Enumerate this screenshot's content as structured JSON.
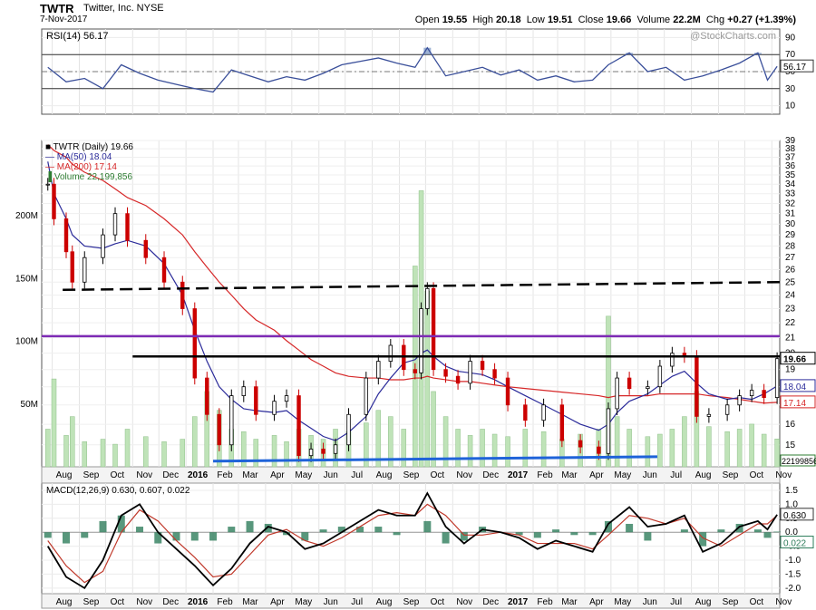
{
  "header": {
    "symbol": "TWTR",
    "company": "Twitter, Inc.  NYSE",
    "date": "7-Nov-2017",
    "quote": {
      "open_label": "Open",
      "open": "19.55",
      "high_label": "High",
      "high": "20.18",
      "low_label": "Low",
      "low": "19.51",
      "close_label": "Close",
      "close": "19.66",
      "volume_label": "Volume",
      "volume": "22.2M",
      "chg_label": "Chg",
      "chg": "+0.27 (+1.39%)"
    },
    "watermark": "@StockCharts.com"
  },
  "colors": {
    "price_up": "#000000",
    "price_down": "#cc0000",
    "ma50": "#2b2b9a",
    "ma200": "#d62728",
    "volume": "#bfe3b8",
    "rsi": "#3a4f9a",
    "macd": "#000000",
    "signal": "#c0392b",
    "histogram": "#2e7d5b",
    "resistance_purple": "#7e2bb5",
    "support_blue": "#1f63d9",
    "level_black": "#000000"
  },
  "chart_data": [
    {
      "type": "line",
      "panel": "rsi",
      "legend": "RSI(14) 56.17",
      "ylim": [
        0,
        100
      ],
      "yticks": [
        "90",
        "70",
        "50",
        "30",
        "10"
      ],
      "current_value_label": "56.17",
      "reference_lines": [
        70,
        30
      ],
      "x": [
        "2015-07-27",
        "2015-08-17",
        "2015-09-07",
        "2015-09-28",
        "2015-10-19",
        "2015-11-09",
        "2015-11-30",
        "2015-12-21",
        "2016-01-11",
        "2016-02-01",
        "2016-02-22",
        "2016-03-14",
        "2016-04-04",
        "2016-04-25",
        "2016-05-16",
        "2016-06-06",
        "2016-06-27",
        "2016-07-18",
        "2016-08-08",
        "2016-08-29",
        "2016-09-19",
        "2016-10-03",
        "2016-10-24",
        "2016-11-14",
        "2016-12-05",
        "2016-12-26",
        "2017-01-16",
        "2017-02-06",
        "2017-02-27",
        "2017-03-20",
        "2017-04-10",
        "2017-04-28",
        "2017-05-22",
        "2017-06-12",
        "2017-07-03",
        "2017-07-24",
        "2017-08-14",
        "2017-09-04",
        "2017-09-25",
        "2017-10-16",
        "2017-10-27",
        "2017-11-07"
      ],
      "values": [
        55,
        38,
        42,
        30,
        58,
        48,
        40,
        35,
        30,
        26,
        52,
        45,
        38,
        44,
        40,
        48,
        58,
        62,
        66,
        60,
        55,
        78,
        45,
        50,
        55,
        46,
        52,
        40,
        45,
        38,
        40,
        58,
        72,
        50,
        55,
        40,
        45,
        52,
        60,
        72,
        40,
        56.17
      ]
    },
    {
      "type": "candlestick",
      "panel": "price",
      "legend": [
        "TWTR (Daily) 19.66",
        "MA(50) 18.04",
        "MA(200) 17.14",
        "Volume 22,199,856"
      ],
      "y_scale": "log",
      "ylim": [
        14,
        39
      ],
      "yticks": [
        "39",
        "38",
        "37",
        "36",
        "35",
        "34",
        "33",
        "32",
        "31",
        "30",
        "29",
        "28",
        "27",
        "26",
        "25",
        "24",
        "23",
        "22",
        "21",
        "20",
        "19",
        "18",
        "17",
        "16",
        "15"
      ],
      "current_labels": {
        "close": "19.66",
        "ma50": "18.04",
        "ma200": "17.14",
        "volume": "22199856"
      },
      "x": [
        "2015-07-27",
        "2015-08-03",
        "2015-08-17",
        "2015-08-24",
        "2015-09-07",
        "2015-09-28",
        "2015-10-12",
        "2015-10-26",
        "2015-11-16",
        "2015-12-07",
        "2015-12-28",
        "2016-01-11",
        "2016-01-25",
        "2016-02-08",
        "2016-02-22",
        "2016-03-07",
        "2016-03-21",
        "2016-04-11",
        "2016-04-25",
        "2016-05-09",
        "2016-05-23",
        "2016-06-06",
        "2016-06-20",
        "2016-07-05",
        "2016-07-25",
        "2016-08-08",
        "2016-08-22",
        "2016-09-06",
        "2016-09-19",
        "2016-09-26",
        "2016-10-03",
        "2016-10-10",
        "2016-10-24",
        "2016-11-07",
        "2016-11-21",
        "2016-12-05",
        "2016-12-19",
        "2017-01-03",
        "2017-01-23",
        "2017-02-13",
        "2017-03-06",
        "2017-03-27",
        "2017-04-17",
        "2017-04-28",
        "2017-05-08",
        "2017-05-22",
        "2017-06-12",
        "2017-06-26",
        "2017-07-10",
        "2017-07-24",
        "2017-08-07",
        "2017-08-21",
        "2017-09-11",
        "2017-09-25",
        "2017-10-09",
        "2017-10-23",
        "2017-11-07"
      ],
      "close": [
        34.0,
        30.5,
        27.5,
        25.0,
        27.0,
        29.0,
        31.0,
        28.5,
        27.0,
        25.0,
        23.0,
        18.5,
        16.5,
        15.0,
        17.5,
        18.0,
        16.5,
        17.2,
        17.5,
        14.5,
        14.8,
        14.6,
        15.0,
        16.5,
        18.5,
        19.5,
        20.5,
        19.0,
        18.8,
        23.0,
        24.5,
        19.0,
        18.6,
        18.2,
        19.5,
        19.0,
        18.5,
        17.0,
        16.2,
        17.0,
        15.2,
        14.9,
        14.6,
        16.8,
        18.5,
        17.9,
        18.0,
        19.2,
        20.0,
        19.8,
        16.4,
        16.5,
        17.0,
        17.5,
        17.8,
        17.4,
        19.66
      ],
      "ma50": [
        36.5,
        33.0,
        30.5,
        29.0,
        28.0,
        27.8,
        28.2,
        28.5,
        28.0,
        26.5,
        24.0,
        21.5,
        19.5,
        18.0,
        17.3,
        16.8,
        16.7,
        16.6,
        16.7,
        16.2,
        15.8,
        15.4,
        15.2,
        15.6,
        16.4,
        17.6,
        18.5,
        19.4,
        19.6,
        20.0,
        20.2,
        19.8,
        19.2,
        18.9,
        18.8,
        18.7,
        18.4,
        18.0,
        17.5,
        17.0,
        16.5,
        16.0,
        15.7,
        16.0,
        16.6,
        17.2,
        17.6,
        18.1,
        18.6,
        18.9,
        18.2,
        17.6,
        17.3,
        17.4,
        17.3,
        17.6,
        18.04
      ],
      "ma200": [
        38.5,
        37.8,
        37.0,
        36.2,
        35.3,
        34.4,
        33.5,
        32.6,
        31.8,
        30.5,
        29.0,
        27.5,
        26.2,
        25.0,
        24.0,
        23.0,
        22.2,
        21.5,
        20.8,
        20.2,
        19.6,
        19.2,
        18.8,
        18.6,
        18.5,
        18.5,
        18.4,
        18.4,
        18.5,
        18.5,
        18.6,
        18.5,
        18.4,
        18.3,
        18.3,
        18.2,
        18.1,
        18.0,
        17.9,
        17.8,
        17.7,
        17.6,
        17.5,
        17.4,
        17.5,
        17.5,
        17.5,
        17.6,
        17.6,
        17.6,
        17.6,
        17.5,
        17.4,
        17.3,
        17.2,
        17.1,
        17.14
      ],
      "volume_m": [
        30,
        70,
        25,
        40,
        20,
        22,
        18,
        30,
        24,
        20,
        22,
        40,
        60,
        45,
        30,
        28,
        22,
        25,
        20,
        30,
        25,
        22,
        30,
        28,
        35,
        45,
        40,
        30,
        160,
        220,
        140,
        60,
        40,
        30,
        25,
        30,
        26,
        24,
        30,
        28,
        22,
        26,
        30,
        120,
        40,
        30,
        24,
        26,
        30,
        40,
        60,
        32,
        28,
        30,
        34,
        26,
        22.2
      ],
      "volume_ticks": [
        "200M",
        "150M",
        "100M",
        "50M"
      ]
    },
    {
      "type": "line",
      "panel": "macd",
      "legend": "MACD(12,26,9) 0.630, 0.607, 0.022",
      "ylim": [
        -2.2,
        1.5
      ],
      "yticks": [
        "1.5",
        "1.0",
        "0.5",
        "0.0",
        "-0.5",
        "-1.0",
        "-1.5",
        "-2.0"
      ],
      "current_labels": {
        "macd": "0.630",
        "histogram": "0.022"
      },
      "x": [
        "2015-07-27",
        "2015-08-17",
        "2015-09-07",
        "2015-09-28",
        "2015-10-19",
        "2015-11-09",
        "2015-11-30",
        "2015-12-21",
        "2016-01-11",
        "2016-02-01",
        "2016-02-22",
        "2016-03-14",
        "2016-04-04",
        "2016-04-25",
        "2016-05-16",
        "2016-06-06",
        "2016-06-27",
        "2016-07-18",
        "2016-08-08",
        "2016-08-29",
        "2016-09-19",
        "2016-10-03",
        "2016-10-24",
        "2016-11-14",
        "2016-12-05",
        "2016-12-26",
        "2017-01-16",
        "2017-02-06",
        "2017-02-27",
        "2017-03-20",
        "2017-04-10",
        "2017-04-28",
        "2017-05-22",
        "2017-06-12",
        "2017-07-03",
        "2017-07-24",
        "2017-08-14",
        "2017-09-04",
        "2017-09-25",
        "2017-10-16",
        "2017-10-27",
        "2017-11-07"
      ],
      "series": [
        {
          "name": "MACD",
          "values": [
            -0.5,
            -1.6,
            -2.0,
            -1.0,
            0.6,
            1.0,
            0.0,
            -0.6,
            -1.2,
            -1.9,
            -1.3,
            -0.4,
            0.2,
            0.0,
            -0.6,
            -0.4,
            0.0,
            0.4,
            0.8,
            0.6,
            0.6,
            1.4,
            0.2,
            -0.4,
            0.1,
            0.0,
            -0.2,
            -0.6,
            -0.3,
            -0.5,
            -0.7,
            0.3,
            0.9,
            0.2,
            0.3,
            0.6,
            -0.7,
            -0.4,
            0.2,
            0.4,
            0.1,
            0.63
          ]
        },
        {
          "name": "Signal",
          "values": [
            -0.3,
            -1.2,
            -1.8,
            -1.4,
            0.0,
            0.8,
            0.4,
            -0.3,
            -0.9,
            -1.6,
            -1.5,
            -0.8,
            -0.1,
            0.1,
            -0.3,
            -0.5,
            -0.2,
            0.2,
            0.6,
            0.7,
            0.6,
            1.0,
            0.6,
            -0.1,
            -0.1,
            0.0,
            -0.1,
            -0.4,
            -0.4,
            -0.4,
            -0.6,
            -0.1,
            0.6,
            0.5,
            0.3,
            0.5,
            -0.2,
            -0.5,
            -0.1,
            0.3,
            0.3,
            0.607
          ]
        },
        {
          "name": "Histogram",
          "values": [
            -0.2,
            -0.4,
            -0.2,
            0.4,
            0.6,
            0.2,
            -0.4,
            -0.3,
            -0.3,
            -0.3,
            0.2,
            0.4,
            0.3,
            -0.1,
            -0.3,
            0.1,
            0.2,
            0.2,
            0.2,
            -0.1,
            0.0,
            0.4,
            -0.4,
            -0.3,
            0.2,
            0.0,
            -0.1,
            -0.2,
            0.1,
            -0.1,
            -0.1,
            0.4,
            0.3,
            -0.3,
            0.0,
            0.1,
            -0.5,
            0.1,
            0.3,
            0.1,
            -0.2,
            0.022
          ]
        }
      ]
    }
  ],
  "x_axis": {
    "ticks": [
      {
        "label": "Aug",
        "date": "2015-08-01",
        "bold": false
      },
      {
        "label": "Sep",
        "date": "2015-09-01",
        "bold": false
      },
      {
        "label": "Oct",
        "date": "2015-10-01",
        "bold": false
      },
      {
        "label": "Nov",
        "date": "2015-11-01",
        "bold": false
      },
      {
        "label": "Dec",
        "date": "2015-12-01",
        "bold": false
      },
      {
        "label": "2016",
        "date": "2016-01-01",
        "bold": true
      },
      {
        "label": "Feb",
        "date": "2016-02-01",
        "bold": false
      },
      {
        "label": "Mar",
        "date": "2016-03-01",
        "bold": false
      },
      {
        "label": "Apr",
        "date": "2016-04-01",
        "bold": false
      },
      {
        "label": "May",
        "date": "2016-05-01",
        "bold": false
      },
      {
        "label": "Jun",
        "date": "2016-06-01",
        "bold": false
      },
      {
        "label": "Jul",
        "date": "2016-07-01",
        "bold": false
      },
      {
        "label": "Aug",
        "date": "2016-08-01",
        "bold": false
      },
      {
        "label": "Sep",
        "date": "2016-09-01",
        "bold": false
      },
      {
        "label": "Oct",
        "date": "2016-10-01",
        "bold": false
      },
      {
        "label": "Nov",
        "date": "2016-11-01",
        "bold": false
      },
      {
        "label": "Dec",
        "date": "2016-12-01",
        "bold": false
      },
      {
        "label": "2017",
        "date": "2017-01-01",
        "bold": true
      },
      {
        "label": "Feb",
        "date": "2017-02-01",
        "bold": false
      },
      {
        "label": "Mar",
        "date": "2017-03-01",
        "bold": false
      },
      {
        "label": "Apr",
        "date": "2017-04-01",
        "bold": false
      },
      {
        "label": "May",
        "date": "2017-05-01",
        "bold": false
      },
      {
        "label": "Jun",
        "date": "2017-06-01",
        "bold": false
      },
      {
        "label": "Jul",
        "date": "2017-07-01",
        "bold": false
      },
      {
        "label": "Aug",
        "date": "2017-08-01",
        "bold": false
      },
      {
        "label": "Sep",
        "date": "2017-09-01",
        "bold": false
      },
      {
        "label": "Oct",
        "date": "2017-10-01",
        "bold": false
      },
      {
        "label": "Nov",
        "date": "2017-11-01",
        "bold": false
      }
    ]
  },
  "annotations": [
    {
      "name": "resistance-line-dashed",
      "style": "dashed",
      "color": "level_black",
      "from": {
        "date": "2015-08-13",
        "value": 24.4
      },
      "to": {
        "date": "2017-11-10",
        "value": 25.0
      }
    },
    {
      "name": "purple-resistance-line",
      "style": "solid",
      "color": "resistance_purple",
      "from": {
        "date": "2015-07-20",
        "value": 21.1
      },
      "to": {
        "date": "2017-11-10",
        "value": 21.1
      }
    },
    {
      "name": "black-pivot-line",
      "style": "solid",
      "color": "level_black",
      "from": {
        "date": "2015-11-01",
        "value": 19.8
      },
      "to": {
        "date": "2017-11-10",
        "value": 19.8
      }
    },
    {
      "name": "blue-support-line",
      "style": "solid",
      "color": "support_blue",
      "from": {
        "date": "2016-02-01",
        "value": 14.25
      },
      "to": {
        "date": "2017-06-23",
        "value": 14.45
      }
    }
  ]
}
